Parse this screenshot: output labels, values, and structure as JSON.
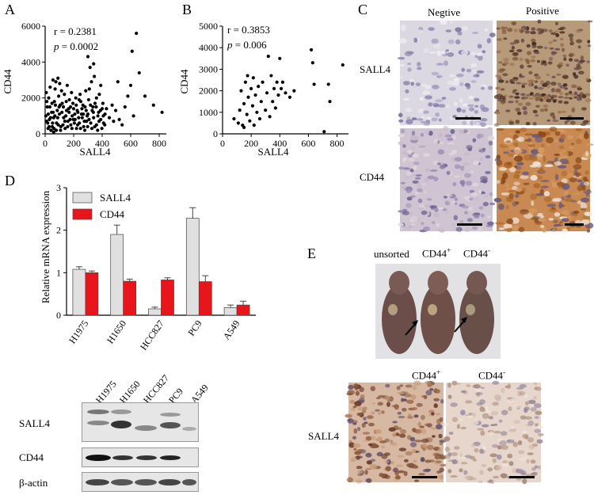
{
  "panels": {
    "a": {
      "label": "A",
      "r_text": "r = 0.2381",
      "p_prefix": "p",
      "p_rest": " = 0.0002",
      "chart_data": {
        "type": "scatter",
        "xlabel": "SALL4",
        "ylabel": "CD44",
        "xlim": [
          0,
          850
        ],
        "ylim": [
          0,
          6000
        ],
        "xticks": [
          "0",
          "200",
          "400",
          "600",
          "800"
        ],
        "yticks": [
          "0",
          "2000",
          "4000",
          "6000"
        ],
        "points": [
          [
            20,
            300
          ],
          [
            30,
            800
          ],
          [
            45,
            1200
          ],
          [
            60,
            900
          ],
          [
            15,
            1500
          ],
          [
            80,
            600
          ],
          [
            100,
            1100
          ],
          [
            110,
            400
          ],
          [
            120,
            1700
          ],
          [
            130,
            900
          ],
          [
            140,
            300
          ],
          [
            150,
            1300
          ],
          [
            160,
            700
          ],
          [
            170,
            1900
          ],
          [
            180,
            500
          ],
          [
            190,
            1000
          ],
          [
            200,
            1400
          ],
          [
            210,
            800
          ],
          [
            220,
            300
          ],
          [
            230,
            1200
          ],
          [
            240,
            600
          ],
          [
            250,
            1800
          ],
          [
            260,
            900
          ],
          [
            270,
            400
          ],
          [
            280,
            1500
          ],
          [
            290,
            700
          ],
          [
            300,
            1100
          ],
          [
            310,
            2500
          ],
          [
            320,
            600
          ],
          [
            330,
            1300
          ],
          [
            340,
            900
          ],
          [
            350,
            1700
          ],
          [
            360,
            500
          ],
          [
            370,
            1000
          ],
          [
            380,
            2200
          ],
          [
            390,
            800
          ],
          [
            400,
            1400
          ],
          [
            410,
            600
          ],
          [
            420,
            1100
          ],
          [
            25,
            2000
          ],
          [
            35,
            2600
          ],
          [
            50,
            400
          ],
          [
            65,
            1800
          ],
          [
            75,
            2900
          ],
          [
            85,
            1300
          ],
          [
            95,
            2100
          ],
          [
            105,
            1600
          ],
          [
            115,
            2400
          ],
          [
            125,
            500
          ],
          [
            135,
            2200
          ],
          [
            145,
            1000
          ],
          [
            155,
            2700
          ],
          [
            165,
            1400
          ],
          [
            175,
            800
          ],
          [
            185,
            2300
          ],
          [
            195,
            1700
          ],
          [
            205,
            600
          ],
          [
            215,
            2000
          ],
          [
            225,
            1300
          ],
          [
            235,
            900
          ],
          [
            245,
            2200
          ],
          [
            255,
            1100
          ],
          [
            265,
            1600
          ],
          [
            275,
            700
          ],
          [
            285,
            2400
          ],
          [
            295,
            1000
          ],
          [
            305,
            1900
          ],
          [
            315,
            3700
          ],
          [
            325,
            2900
          ],
          [
            335,
            1500
          ],
          [
            345,
            3200
          ],
          [
            360,
            2000
          ],
          [
            375,
            1200
          ],
          [
            390,
            2700
          ],
          [
            405,
            1700
          ],
          [
            430,
            1400
          ],
          [
            450,
            900
          ],
          [
            470,
            1600
          ],
          [
            480,
            700
          ],
          [
            495,
            1300
          ],
          [
            510,
            2900
          ],
          [
            520,
            800
          ],
          [
            540,
            500
          ],
          [
            560,
            1500
          ],
          [
            580,
            2100
          ],
          [
            600,
            2700
          ],
          [
            610,
            4600
          ],
          [
            620,
            1000
          ],
          [
            640,
            5600
          ],
          [
            660,
            3400
          ],
          [
            700,
            2100
          ],
          [
            760,
            1600
          ],
          [
            820,
            1200
          ],
          [
            300,
            4300
          ],
          [
            340,
            3900
          ],
          [
            90,
            3100
          ],
          [
            40,
            200
          ],
          [
            60,
            100
          ],
          [
            10,
            700
          ],
          [
            5,
            1000
          ],
          [
            12,
            1800
          ],
          [
            8,
            2300
          ],
          [
            18,
            600
          ],
          [
            22,
            1100
          ],
          [
            28,
            400
          ],
          [
            33,
            1500
          ],
          [
            38,
            900
          ],
          [
            42,
            200
          ],
          [
            48,
            1700
          ],
          [
            52,
            600
          ],
          [
            56,
            1200
          ],
          [
            62,
            300
          ],
          [
            68,
            1000
          ],
          [
            72,
            1600
          ],
          [
            78,
            200
          ],
          [
            88,
            900
          ],
          [
            92,
            500
          ],
          [
            98,
            1500
          ],
          [
            108,
            200
          ],
          [
            118,
            1200
          ],
          [
            128,
            1500
          ],
          [
            138,
            700
          ],
          [
            148,
            1800
          ],
          [
            158,
            400
          ],
          [
            168,
            1200
          ],
          [
            178,
            1500
          ],
          [
            188,
            300
          ],
          [
            198,
            800
          ],
          [
            208,
            1100
          ],
          [
            218,
            1600
          ],
          [
            228,
            500
          ],
          [
            238,
            1900
          ],
          [
            248,
            300
          ],
          [
            258,
            1400
          ],
          [
            268,
            1100
          ],
          [
            278,
            200
          ],
          [
            288,
            1300
          ],
          [
            298,
            400
          ],
          [
            308,
            800
          ],
          [
            318,
            1600
          ],
          [
            328,
            300
          ],
          [
            338,
            1200
          ],
          [
            348,
            400
          ],
          [
            358,
            1500
          ],
          [
            368,
            200
          ],
          [
            378,
            700
          ],
          [
            388,
            1300
          ],
          [
            398,
            300
          ],
          [
            408,
            1000
          ],
          [
            418,
            500
          ],
          [
            55,
            3000
          ],
          [
            70,
            2500
          ],
          [
            102,
            2800
          ]
        ]
      }
    },
    "b": {
      "label": "B",
      "r_text": "r = 0.3853",
      "p_prefix": "p",
      "p_rest": " = 0.006",
      "chart_data": {
        "type": "scatter",
        "xlabel": "SALL4",
        "ylabel": "CD44",
        "xlim": [
          0,
          880
        ],
        "ylim": [
          0,
          5000
        ],
        "xticks": [
          "0",
          "200",
          "400",
          "600",
          "800"
        ],
        "yticks": [
          "0",
          "1000",
          "2000",
          "3000",
          "4000",
          "5000"
        ],
        "points": [
          [
            80,
            700
          ],
          [
            110,
            500
          ],
          [
            120,
            1100
          ],
          [
            130,
            2000
          ],
          [
            140,
            400
          ],
          [
            150,
            1400
          ],
          [
            160,
            2400
          ],
          [
            170,
            900
          ],
          [
            175,
            2700
          ],
          [
            180,
            1700
          ],
          [
            190,
            600
          ],
          [
            200,
            2100
          ],
          [
            210,
            1300
          ],
          [
            215,
            2600
          ],
          [
            220,
            400
          ],
          [
            230,
            1800
          ],
          [
            240,
            1000
          ],
          [
            250,
            2200
          ],
          [
            260,
            700
          ],
          [
            270,
            1500
          ],
          [
            280,
            2400
          ],
          [
            300,
            1100
          ],
          [
            310,
            1900
          ],
          [
            320,
            3600
          ],
          [
            330,
            800
          ],
          [
            340,
            2700
          ],
          [
            350,
            1500
          ],
          [
            360,
            2100
          ],
          [
            370,
            1200
          ],
          [
            380,
            2400
          ],
          [
            390,
            1800
          ],
          [
            400,
            3500
          ],
          [
            410,
            2100
          ],
          [
            420,
            2400
          ],
          [
            440,
            1900
          ],
          [
            470,
            1700
          ],
          [
            500,
            2000
          ],
          [
            620,
            3900
          ],
          [
            630,
            3300
          ],
          [
            640,
            2300
          ],
          [
            710,
            100
          ],
          [
            740,
            2300
          ],
          [
            750,
            1500
          ],
          [
            840,
            3200
          ],
          [
            150,
            300
          ]
        ]
      }
    },
    "c": {
      "label": "C",
      "col_headers": [
        "Negtive",
        "Positive"
      ],
      "row_labels": [
        "SALL4",
        "CD44"
      ]
    },
    "d": {
      "label": "D",
      "chart_data": {
        "type": "bar",
        "ylabel": "Relative  mRNA expression",
        "ylim": [
          0,
          3
        ],
        "yticks": [
          "0",
          "1",
          "2",
          "3"
        ],
        "categories": [
          "H1975",
          "H1650",
          "HCC827",
          "PC9",
          "A549"
        ],
        "series": [
          {
            "name": "SALL4",
            "color": "#e0e0e0",
            "values": [
              1.08,
              1.9,
              0.15,
              2.28,
              0.18
            ],
            "errors": [
              0.06,
              0.22,
              0.04,
              0.25,
              0.06
            ]
          },
          {
            "name": "CD44",
            "color": "#e8161c",
            "values": [
              1.0,
              0.8,
              0.83,
              0.79,
              0.24
            ],
            "errors": [
              0.04,
              0.05,
              0.05,
              0.14,
              0.09
            ]
          }
        ]
      },
      "blot": {
        "lanes": [
          "H1975",
          "H1650",
          "HCC827",
          "PC9",
          "A549"
        ],
        "rows": [
          "SALL4",
          "CD44",
          "β-actin"
        ]
      }
    },
    "e": {
      "label": "E",
      "mouse_labels": {
        "unsorted": "unsorted",
        "pos_base": "CD44",
        "pos_sup": "+",
        "neg_base": "CD44",
        "neg_sup": "-"
      },
      "ihc_headers": {
        "pos_base": "CD44",
        "pos_sup": "+",
        "neg_base": "CD44",
        "neg_sup": "-"
      },
      "row_label": "SALL4"
    }
  }
}
